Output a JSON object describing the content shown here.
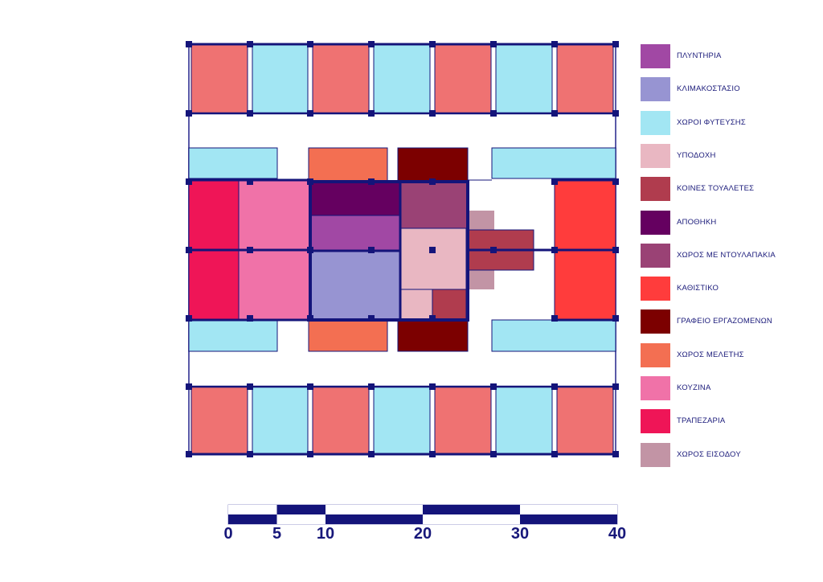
{
  "colors": {
    "structure": "#14147a",
    "corridor_fill": "#ffffff",
    "laundry": "#a148a4",
    "stairs": "#9794d2",
    "planting": "#a2e6f3",
    "reception": "#e9b7c2",
    "wc": "#b03c4e",
    "storage": "#650060",
    "lockers": "#9a4275",
    "living": "#ff3c3c",
    "staff_office": "#7c0000",
    "study": "#f36f52",
    "kitchen": "#f072a8",
    "dining": "#ef1557",
    "entrance": "#c294a5",
    "rooms": "#ef7272"
  },
  "legend": [
    {
      "key": "laundry",
      "label": "ΠΛΥΝΤΗΡΙΑ"
    },
    {
      "key": "stairs",
      "label": "ΚΛΙΜΑΚΟΣΤΑΣΙΟ"
    },
    {
      "key": "planting",
      "label": "ΧΩΡΟΙ ΦΥΤΕΥΣΗΣ"
    },
    {
      "key": "reception",
      "label": "ΥΠΟΔΟΧΗ"
    },
    {
      "key": "wc",
      "label": "ΚΟΙΝΕΣ ΤΟΥΑΛΕΤΕΣ"
    },
    {
      "key": "storage",
      "label": "ΑΠΟΘΗΚΗ"
    },
    {
      "key": "lockers",
      "label": "ΧΩΡΟΣ ΜΕ ΝΤΟΥΛΑΠΑΚΙΑ"
    },
    {
      "key": "living",
      "label": "ΚΑΘΙΣΤΙΚΟ"
    },
    {
      "key": "staff_office",
      "label": "ΓΡΑΦΕΙΟ ΕΡΓΑΖΟΜΕΝΩΝ"
    },
    {
      "key": "study",
      "label": "ΧΩΡΟΣ ΜΕΛΕΤΗΣ"
    },
    {
      "key": "kitchen",
      "label": "ΚΟΥΖΙΝΑ"
    },
    {
      "key": "dining",
      "label": "ΤΡΑΠΕΖΑΡΙΑ"
    },
    {
      "key": "entrance",
      "label": "ΧΩΡΟΣ ΕΙΣΟΔΟΥ"
    }
  ],
  "scale": {
    "ticks": [
      0,
      5,
      10,
      20,
      30,
      40
    ],
    "labels": [
      "0",
      "5",
      "10",
      "20",
      "30",
      "40"
    ]
  }
}
